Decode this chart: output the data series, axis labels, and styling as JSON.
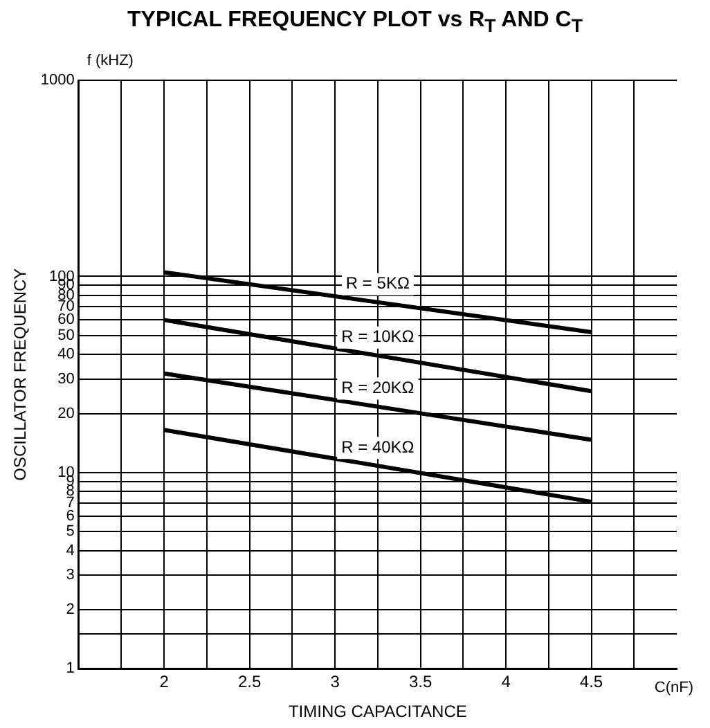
{
  "chart_data": {
    "type": "line",
    "title": "TYPICAL FREQUENCY PLOT vs R$_{T}$ AND C$_{T}$",
    "xlabel": "TIMING CAPACITANCE",
    "ylabel": "OSCILLATOR FREQUENCY",
    "annotations": [
      "f (kHZ)",
      "C(nF)"
    ],
    "x": [
      2,
      4.5
    ],
    "series": [
      {
        "name": "R = 5KΩ",
        "color": "#000000",
        "values": [
          105,
          52
        ]
      },
      {
        "name": "R = 10KΩ",
        "color": "#000000",
        "values": [
          60,
          26
        ]
      },
      {
        "name": "R = 20KΩ",
        "color": "#000000",
        "values": [
          32,
          14.7
        ]
      },
      {
        "name": "R = 40KΩ",
        "color": "#000000",
        "values": [
          16.5,
          7.1
        ]
      }
    ],
    "log": "y",
    "xlim": [
      1.5,
      5
    ],
    "ylim": [
      1,
      1000
    ],
    "xticks": [
      {
        "value": 1.75,
        "label": null
      },
      2,
      {
        "value": 2.25,
        "label": null
      },
      2.5,
      {
        "value": 2.75,
        "label": null
      },
      3,
      {
        "value": 3.25,
        "label": null
      },
      3.5,
      {
        "value": 3.75,
        "label": null
      },
      4,
      {
        "value": 4.25,
        "label": null
      },
      4.5,
      {
        "value": 4.75,
        "label": null
      }
    ],
    "yticks": [
      1,
      {
        "value": 1.5,
        "label": null
      },
      2,
      3,
      4,
      5,
      6,
      7,
      8,
      9,
      10,
      20,
      30,
      40,
      50,
      60,
      70,
      80,
      90,
      100,
      1000
    ],
    "grid": true,
    "legend": false,
    "marker": "none",
    "line_style": "solid"
  }
}
